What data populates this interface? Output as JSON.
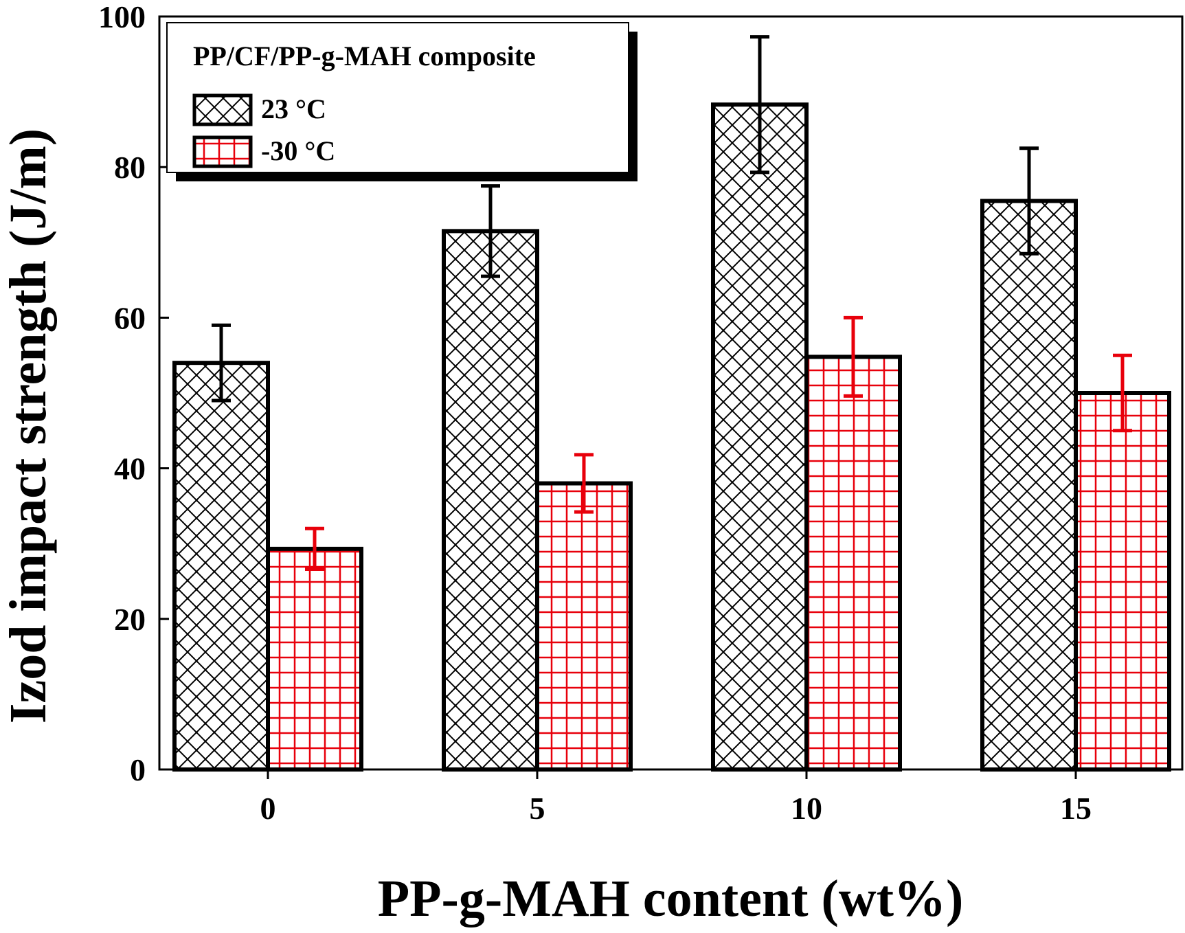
{
  "chart_data": {
    "type": "bar",
    "title": "",
    "xlabel": "PP-g-MAH content (wt%)",
    "ylabel": "Izod impact strength (J/m)",
    "categories": [
      "0",
      "5",
      "10",
      "15"
    ],
    "ylim": [
      0,
      100
    ],
    "yticks": [
      0,
      20,
      40,
      60,
      80,
      100
    ],
    "grid": false,
    "legend": {
      "title": "PP/CF/PP-g-MAH composite",
      "position": "top-left"
    },
    "series": [
      {
        "name": "23 °C",
        "values": [
          54,
          71.5,
          88.3,
          75.5
        ],
        "errors": [
          5,
          6,
          9,
          7
        ],
        "color": "#000000",
        "error_color": "#000000",
        "pattern": "crosshatch"
      },
      {
        "name": "-30 °C",
        "values": [
          29.3,
          38,
          54.8,
          50
        ],
        "errors": [
          2.7,
          3.8,
          5.2,
          5
        ],
        "color": "#e8000b",
        "error_color": "#e8000b",
        "pattern": "grid"
      }
    ]
  }
}
